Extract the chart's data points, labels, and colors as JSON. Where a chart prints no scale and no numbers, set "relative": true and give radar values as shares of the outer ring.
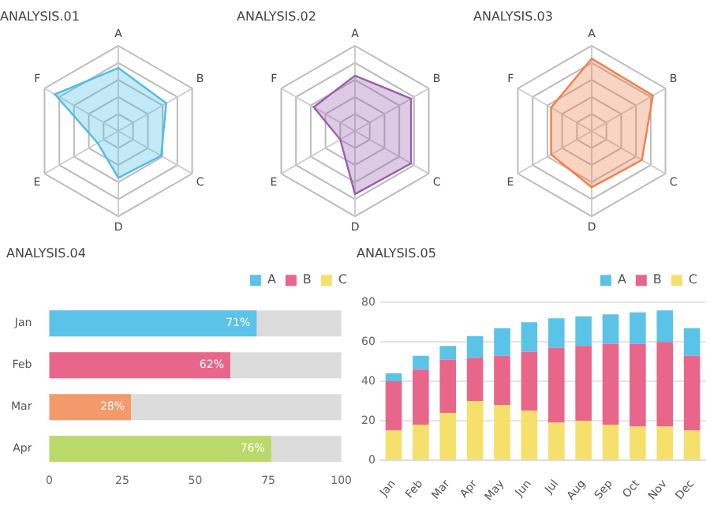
{
  "chart_data": [
    {
      "type": "radar",
      "title": "ANALYSIS.01",
      "categories": [
        "A",
        "B",
        "C",
        "D",
        "E",
        "F"
      ],
      "relative": true,
      "grid": true,
      "marker": "none",
      "series": [
        {
          "color": "#4fbde6",
          "values": [
            0.74,
            0.65,
            0.58,
            0.55,
            0.28,
            0.86
          ]
        }
      ]
    },
    {
      "type": "radar",
      "title": "ANALYSIS.02",
      "categories": [
        "A",
        "B",
        "C",
        "D",
        "E",
        "F"
      ],
      "relative": true,
      "grid": true,
      "marker": "none",
      "series": [
        {
          "color": "#9a5fae",
          "values": [
            0.65,
            0.76,
            0.76,
            0.74,
            0.2,
            0.56
          ]
        }
      ]
    },
    {
      "type": "radar",
      "title": "ANALYSIS.03",
      "categories": [
        "A",
        "B",
        "C",
        "D",
        "E",
        "F"
      ],
      "relative": true,
      "grid": true,
      "marker": "none",
      "series": [
        {
          "color": "#f07f4a",
          "values": [
            0.85,
            0.83,
            0.68,
            0.66,
            0.55,
            0.55
          ]
        }
      ]
    },
    {
      "type": "bar",
      "title": "ANALYSIS.04",
      "orientation": "horizontal",
      "categories": [
        "Jan",
        "Feb",
        "Mar",
        "Apr"
      ],
      "xlim": [
        0,
        100
      ],
      "xticks": [
        0,
        25,
        50,
        75,
        100
      ],
      "legend": "top right",
      "series": [
        {
          "colors": [
            "#5bc3e8",
            "#e9668b",
            "#f39a6b",
            "#bbd86b"
          ],
          "values": [
            71,
            62,
            28,
            76
          ],
          "value_labels": [
            "71%",
            "62%",
            "28%",
            "76%"
          ]
        },
        {
          "name": "A",
          "color": "#5bc3e8",
          "values": [
            null,
            null,
            null,
            null
          ]
        },
        {
          "name": "B",
          "color": "#e9668b",
          "values": [
            null,
            null,
            null,
            null
          ]
        },
        {
          "name": "C",
          "color": "#f5e06b",
          "values": [
            null,
            null,
            null,
            null
          ]
        }
      ]
    },
    {
      "type": "bar",
      "title": "ANALYSIS.05",
      "stacked": true,
      "categories": [
        "Jan",
        "Feb",
        "Mar",
        "Apr",
        "May",
        "Jun",
        "Jul",
        "Aug",
        "Sep",
        "Oct",
        "Nov",
        "Dec"
      ],
      "ylim": [
        0,
        80
      ],
      "yticks": [
        0,
        20,
        40,
        60,
        80
      ],
      "grid": "y",
      "legend": "top right",
      "series": [
        {
          "name": "C",
          "color": "#f5e06b",
          "values": [
            15,
            18,
            24,
            30,
            28,
            25,
            19,
            20,
            18,
            17,
            17,
            15
          ]
        },
        {
          "name": "B",
          "color": "#e9668b",
          "values": [
            25,
            28,
            27,
            22,
            25,
            30,
            38,
            38,
            41,
            42,
            43,
            38
          ]
        },
        {
          "name": "A",
          "color": "#5bc3e8",
          "values": [
            4,
            7,
            7,
            11,
            14,
            15,
            15,
            15,
            15,
            16,
            16,
            14
          ]
        }
      ]
    }
  ]
}
